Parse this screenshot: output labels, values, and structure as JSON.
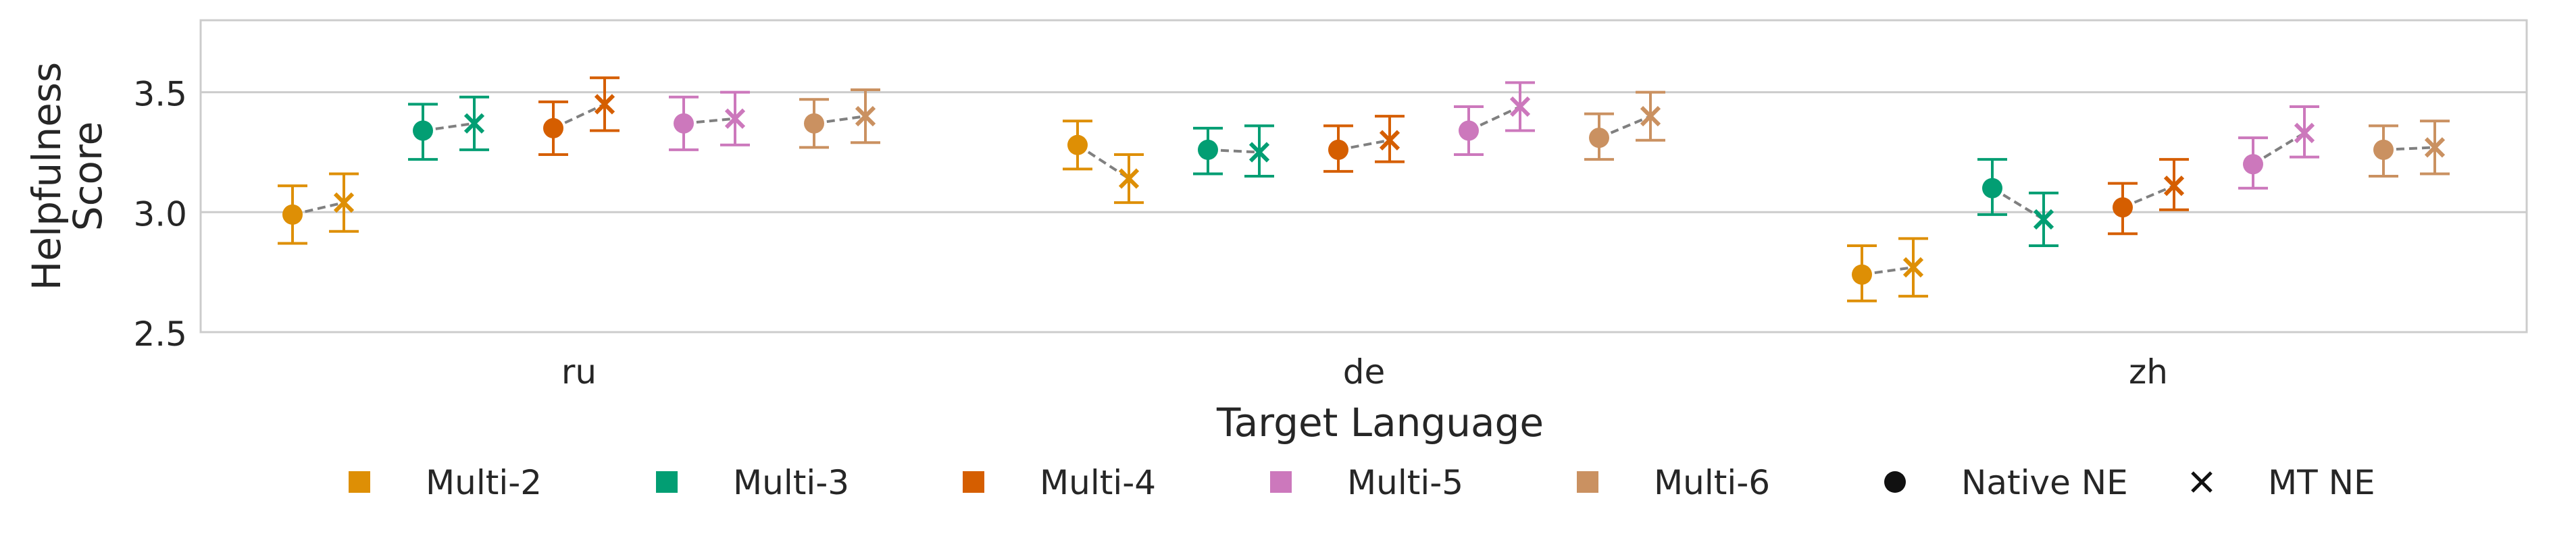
{
  "chart_data": {
    "type": "scatter",
    "xlabel": "Target Language",
    "ylabel": "Helpfulness\nScore",
    "categories": [
      "ru",
      "de",
      "zh"
    ],
    "ylim": [
      2.5,
      3.8
    ],
    "yticks": [
      2.5,
      3.0,
      3.5
    ],
    "grid": true,
    "legend_position": "bottom",
    "legend": [
      {
        "label": "Multi-2",
        "marker": "square",
        "color": "#de8f05"
      },
      {
        "label": "Multi-3",
        "marker": "square",
        "color": "#029e73"
      },
      {
        "label": "Multi-4",
        "marker": "square",
        "color": "#d55e00"
      },
      {
        "label": "Multi-5",
        "marker": "square",
        "color": "#cc78bc"
      },
      {
        "label": "Multi-6",
        "marker": "square",
        "color": "#ca9161"
      },
      {
        "label": "Native NE",
        "marker": "circle",
        "color": "#111111"
      },
      {
        "label": "MT NE",
        "marker": "x",
        "color": "#111111"
      }
    ],
    "series": [
      {
        "name": "Multi-2",
        "color": "#de8f05",
        "native": [
          {
            "value": 2.99,
            "low": 2.87,
            "high": 3.11
          },
          {
            "value": 3.28,
            "low": 3.18,
            "high": 3.38
          },
          {
            "value": 2.74,
            "low": 2.63,
            "high": 2.86
          }
        ],
        "mt": [
          {
            "value": 3.04,
            "low": 2.92,
            "high": 3.16
          },
          {
            "value": 3.14,
            "low": 3.04,
            "high": 3.24
          },
          {
            "value": 2.77,
            "low": 2.65,
            "high": 2.89
          }
        ]
      },
      {
        "name": "Multi-3",
        "color": "#029e73",
        "native": [
          {
            "value": 3.34,
            "low": 3.22,
            "high": 3.45
          },
          {
            "value": 3.26,
            "low": 3.16,
            "high": 3.35
          },
          {
            "value": 3.1,
            "low": 2.99,
            "high": 3.22
          }
        ],
        "mt": [
          {
            "value": 3.37,
            "low": 3.26,
            "high": 3.48
          },
          {
            "value": 3.25,
            "low": 3.15,
            "high": 3.36
          },
          {
            "value": 2.97,
            "low": 2.86,
            "high": 3.08
          }
        ]
      },
      {
        "name": "Multi-4",
        "color": "#d55e00",
        "native": [
          {
            "value": 3.35,
            "low": 3.24,
            "high": 3.46
          },
          {
            "value": 3.26,
            "low": 3.17,
            "high": 3.36
          },
          {
            "value": 3.02,
            "low": 2.91,
            "high": 3.12
          }
        ],
        "mt": [
          {
            "value": 3.45,
            "low": 3.34,
            "high": 3.56
          },
          {
            "value": 3.3,
            "low": 3.21,
            "high": 3.4
          },
          {
            "value": 3.11,
            "low": 3.01,
            "high": 3.22
          }
        ]
      },
      {
        "name": "Multi-5",
        "color": "#cc78bc",
        "native": [
          {
            "value": 3.37,
            "low": 3.26,
            "high": 3.48
          },
          {
            "value": 3.34,
            "low": 3.24,
            "high": 3.44
          },
          {
            "value": 3.2,
            "low": 3.1,
            "high": 3.31
          }
        ],
        "mt": [
          {
            "value": 3.39,
            "low": 3.28,
            "high": 3.5
          },
          {
            "value": 3.44,
            "low": 3.34,
            "high": 3.54
          },
          {
            "value": 3.33,
            "low": 3.23,
            "high": 3.44
          }
        ]
      },
      {
        "name": "Multi-6",
        "color": "#ca9161",
        "native": [
          {
            "value": 3.37,
            "low": 3.27,
            "high": 3.47
          },
          {
            "value": 3.31,
            "low": 3.22,
            "high": 3.41
          },
          {
            "value": 3.26,
            "low": 3.15,
            "high": 3.36
          }
        ],
        "mt": [
          {
            "value": 3.4,
            "low": 3.29,
            "high": 3.51
          },
          {
            "value": 3.4,
            "low": 3.3,
            "high": 3.5
          },
          {
            "value": 3.27,
            "low": 3.16,
            "high": 3.38
          }
        ]
      }
    ]
  }
}
